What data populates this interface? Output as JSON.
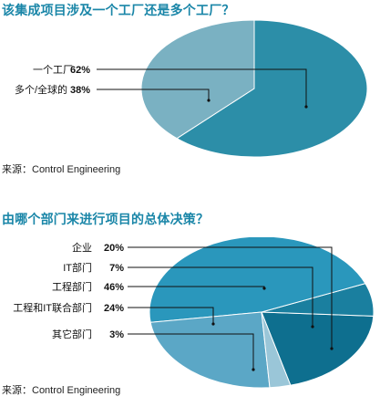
{
  "chart_data": [
    {
      "type": "pie",
      "title": "该集成项目涉及一个工厂还是多个工厂？",
      "categories": [
        "一个工厂",
        "多个/全球的"
      ],
      "values": [
        62,
        38
      ],
      "value_labels": [
        "62%",
        "38%"
      ],
      "colors": [
        "#2c8ea8",
        "#7ab1c2"
      ],
      "source": "来源：Control Engineering"
    },
    {
      "type": "pie",
      "title": "由哪个部门来进行项目的总体决策？",
      "categories": [
        "企业",
        "IT部门",
        "工程部门",
        "工程和IT联合部门",
        "其它部门"
      ],
      "values": [
        20,
        7,
        46,
        24,
        3
      ],
      "value_labels": [
        "20%",
        "7%",
        "46%",
        "24%",
        "3%"
      ],
      "colors": [
        "#0e6f8f",
        "#1a7f9f",
        "#2a97bc",
        "#5ba7c6",
        "#9ac6d8"
      ],
      "source": "来源：Control Engineering"
    }
  ]
}
